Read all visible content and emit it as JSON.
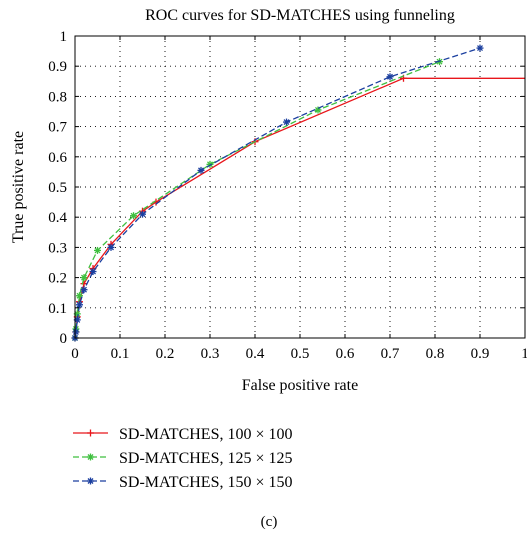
{
  "chart_data": {
    "type": "line",
    "title": "ROC curves for SD-MATCHES using funneling",
    "xlabel": "False positive rate",
    "ylabel": "True positive rate",
    "xlim": [
      0,
      1
    ],
    "ylim": [
      0,
      1
    ],
    "xticks": [
      "0",
      "0.1",
      "0.2",
      "0.3",
      "0.4",
      "0.5",
      "0.6",
      "0.7",
      "0.8",
      "0.9",
      "1"
    ],
    "yticks": [
      "0",
      "0.1",
      "0.2",
      "0.3",
      "0.4",
      "0.5",
      "0.6",
      "0.7",
      "0.8",
      "0.9",
      "1"
    ],
    "grid": "dotted",
    "legend_position": "below",
    "series": [
      {
        "name": "SD-MATCHES, 100 × 100",
        "color": "#e8161b",
        "line_style": "solid",
        "marker": "plus",
        "x": [
          0,
          0.002,
          0.005,
          0.01,
          0.02,
          0.04,
          0.08,
          0.15,
          0.18,
          0.4,
          0.73,
          1.0
        ],
        "y": [
          0,
          0.02,
          0.07,
          0.12,
          0.18,
          0.23,
          0.31,
          0.42,
          0.45,
          0.65,
          0.86,
          0.86
        ],
        "marker_count": 11
      },
      {
        "name": "SD-MATCHES, 125 × 125",
        "color": "#3fbf3f",
        "line_style": "dashed",
        "marker": "asterisk",
        "x": [
          0,
          0.002,
          0.005,
          0.01,
          0.02,
          0.05,
          0.13,
          0.3,
          0.54,
          0.81
        ],
        "y": [
          0,
          0.03,
          0.08,
          0.14,
          0.2,
          0.29,
          0.405,
          0.575,
          0.755,
          0.915
        ]
      },
      {
        "name": "SD-MATCHES, 150 × 150",
        "color": "#1b3f9f",
        "line_style": "dashed",
        "marker": "asterisk",
        "x": [
          0,
          0.002,
          0.005,
          0.01,
          0.02,
          0.04,
          0.08,
          0.15,
          0.28,
          0.47,
          0.7,
          0.9
        ],
        "y": [
          0,
          0.02,
          0.06,
          0.11,
          0.16,
          0.22,
          0.3,
          0.41,
          0.555,
          0.715,
          0.865,
          0.96
        ]
      }
    ],
    "caption": "(c)"
  }
}
